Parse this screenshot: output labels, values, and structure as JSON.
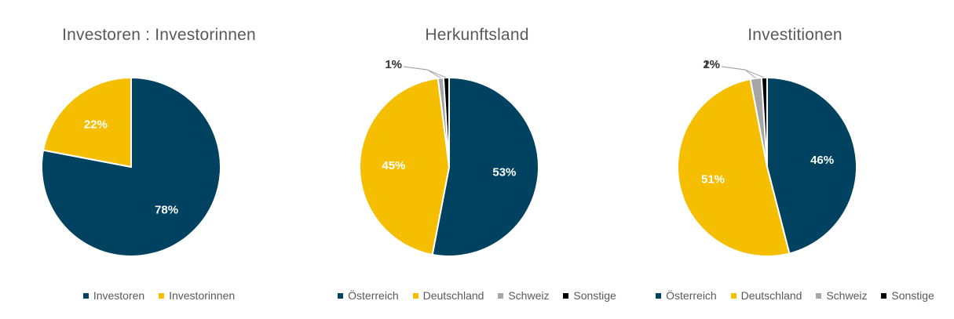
{
  "colors": {
    "oesterreich": "#004260",
    "deutschland": "#F5BE00",
    "schweiz": "#A5A5A5",
    "sonstige": "#000000",
    "label_dark": "#404040",
    "label_light": "#ffffff"
  },
  "chart_data": [
    {
      "type": "pie",
      "title": "Investoren : Investorinnen",
      "slices": [
        {
          "name": "Investoren",
          "value": 78,
          "label": "78%",
          "color": "#004260"
        },
        {
          "name": "Investorinnen",
          "value": 22,
          "label": "22%",
          "color": "#F5BE00"
        }
      ],
      "legend": [
        "Investoren",
        "Investorinnen"
      ],
      "legend_position": "bottom"
    },
    {
      "type": "pie",
      "title": "Herkunftsland",
      "slices": [
        {
          "name": "Österreich",
          "value": 53,
          "label": "53%",
          "color": "#004260"
        },
        {
          "name": "Deutschland",
          "value": 45,
          "label": "45%",
          "color": "#F5BE00"
        },
        {
          "name": "Schweiz",
          "value": 1,
          "label": "1%",
          "color": "#A5A5A5"
        },
        {
          "name": "Sonstige",
          "value": 1,
          "label": "1%",
          "color": "#000000"
        }
      ],
      "legend": [
        "Österreich",
        "Deutschland",
        "Schweiz",
        "Sonstige"
      ],
      "legend_position": "bottom"
    },
    {
      "type": "pie",
      "title": "Investitionen",
      "slices": [
        {
          "name": "Österreich",
          "value": 46,
          "label": "46%",
          "color": "#004260"
        },
        {
          "name": "Deutschland",
          "value": 51,
          "label": "51%",
          "color": "#F5BE00"
        },
        {
          "name": "Schweiz",
          "value": 2,
          "label": "2%",
          "color": "#A5A5A5"
        },
        {
          "name": "Sonstige",
          "value": 1,
          "label": "1%",
          "color": "#000000"
        }
      ],
      "legend": [
        "Österreich",
        "Deutschland",
        "Schweiz",
        "Sonstige"
      ],
      "legend_position": "bottom"
    }
  ]
}
